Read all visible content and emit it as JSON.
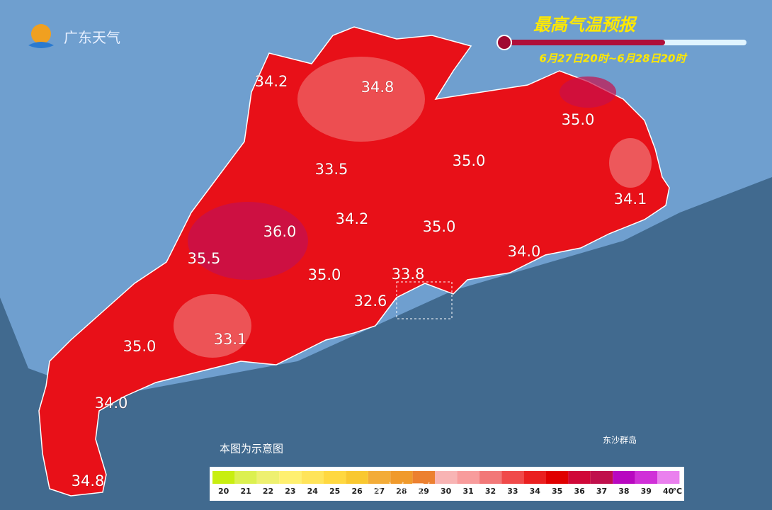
{
  "logo": "广东天气",
  "title": "最高气温预报",
  "subtitle": "6月27日20时~6月28日20时",
  "labels": [
    "34.2",
    "34.8",
    "35.0",
    "33.5",
    "35.0",
    "34.1",
    "34.2",
    "36.0",
    "35.0",
    "35.5",
    "34.0",
    "35.0",
    "33.8",
    "32.6",
    "35.0",
    "33.1",
    "34.0",
    "34.8"
  ],
  "note": "本图为示意图",
  "island_label": "东沙群岛",
  "watermark": "@广东天气",
  "legend": {
    "ticks": [
      20,
      21,
      22,
      23,
      24,
      25,
      26,
      27,
      28,
      29,
      30,
      31,
      32,
      33,
      34,
      35,
      36,
      37,
      38,
      39,
      40
    ],
    "unit": "℃",
    "colors": [
      "#c8ee10",
      "#dcf050",
      "#eef070",
      "#fff070",
      "#ffe45a",
      "#ffd840",
      "#f9c830",
      "#f3ac38",
      "#f09a2c",
      "#ec8030",
      "#f8b4b4",
      "#f89c9c",
      "#f27878",
      "#f04a4a",
      "#ea2020",
      "#e00000",
      "#d00838",
      "#c0104c",
      "#b808c0",
      "#d030d8",
      "#ea80ee"
    ]
  }
}
